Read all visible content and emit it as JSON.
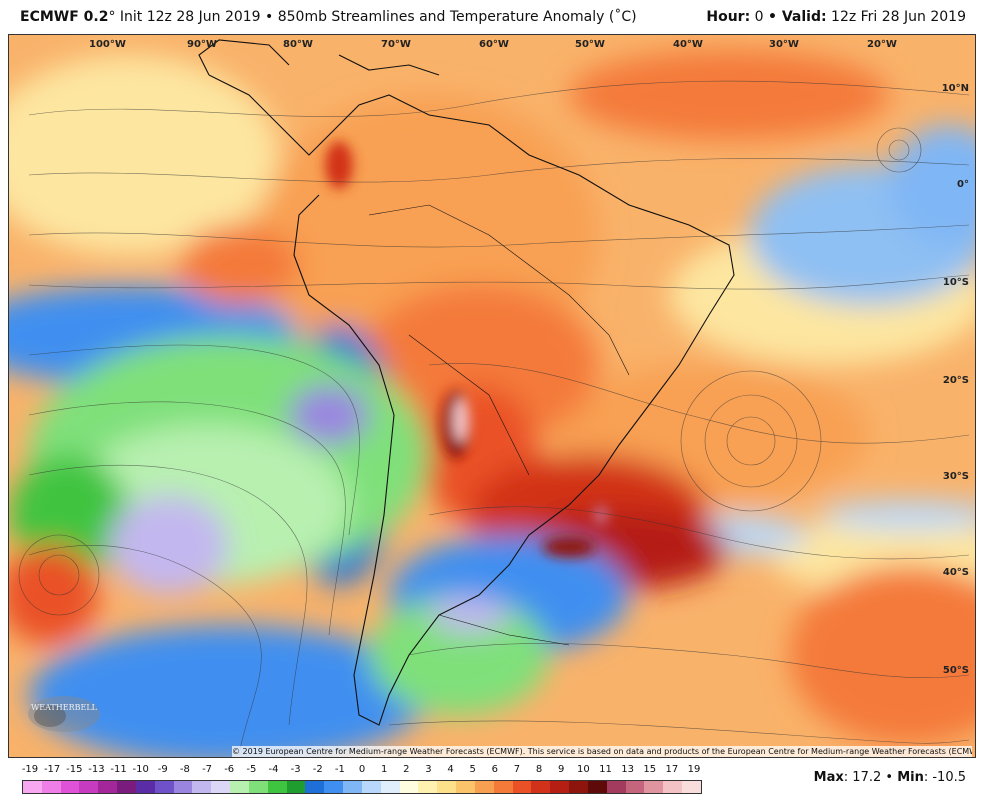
{
  "header": {
    "model": "ECMWF 0.2",
    "degree_sign": "°",
    "init": "Init 12z 28 Jun 2019",
    "product": "• 850mb Streamlines and Temperature Anomaly (˚C)",
    "hour_label": "Hour:",
    "hour_value": "0",
    "valid_label": "• Valid:",
    "valid_value": "12z Fri 28 Jun 2019"
  },
  "longitude_labels": [
    "100°W",
    "90°W",
    "80°W",
    "70°W",
    "60°W",
    "50°W",
    "40°W",
    "30°W",
    "20°W"
  ],
  "latitude_labels": [
    "10°N",
    "0°",
    "10°S",
    "20°S",
    "30°S",
    "40°S",
    "50°S"
  ],
  "copyright": "© 2019 European Centre for Medium-range Weather Forecasts (ECMWF). This service is based on data and products of the European Centre for Medium-range Weather Forecasts (ECMWF).",
  "logo_text": "WEATHERBELL",
  "legend": {
    "labels": [
      "-19",
      "-17",
      "-15",
      "-13",
      "-11",
      "-10",
      "-9",
      "-8",
      "-7",
      "-6",
      "-5",
      "-4",
      "-3",
      "-2",
      "-1",
      "0",
      "1",
      "2",
      "3",
      "4",
      "5",
      "6",
      "7",
      "8",
      "9",
      "10",
      "11",
      "13",
      "15",
      "17",
      "19"
    ],
    "colors": [
      "#f7a8f0",
      "#ef7ee6",
      "#e052d8",
      "#c63bbf",
      "#a3269a",
      "#7a1b7d",
      "#5a2ca5",
      "#6f52c9",
      "#9a86e0",
      "#c3b7ef",
      "#dcd6f7",
      "#b8f0b0",
      "#7fe07a",
      "#3fc43f",
      "#1f9e2f",
      "#1e6fd8",
      "#3f8ff0",
      "#7fb6f5",
      "#b7d8fa",
      "#e0eefc",
      "#fffde0",
      "#fff2b0",
      "#fde08a",
      "#fbc46b",
      "#f8a052",
      "#f47a3a",
      "#ea5126",
      "#d23219",
      "#b51e12",
      "#8e140e",
      "#5e0a08",
      "#a23b5e",
      "#c4647d",
      "#e0949f",
      "#f2c2c4",
      "#f9dcdc"
    ]
  },
  "maxmin": {
    "max_label": "Max",
    "max_value": ": 17.2 •",
    "min_label": "Min",
    "min_value": ": -10.5"
  }
}
